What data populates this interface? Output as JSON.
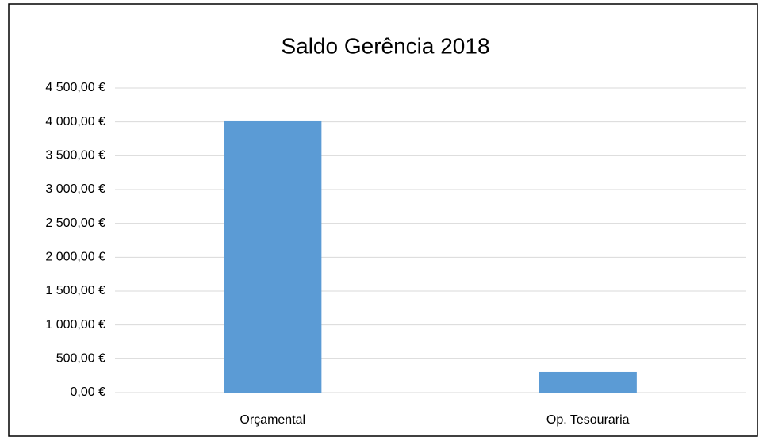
{
  "chart_data": {
    "type": "bar",
    "title": "Saldo Gerência 2018",
    "categories": [
      "Orçamental",
      "Op. Tesouraria"
    ],
    "values": [
      4020,
      305
    ],
    "color": "#5b9bd5",
    "ylim": [
      0,
      4500
    ],
    "yticks": [
      {
        "value": 0,
        "label": "0,00 €"
      },
      {
        "value": 500,
        "label": "500,00 €"
      },
      {
        "value": 1000,
        "label": "1 000,00 €"
      },
      {
        "value": 1500,
        "label": "1 500,00 €"
      },
      {
        "value": 2000,
        "label": "2 000,00 €"
      },
      {
        "value": 2500,
        "label": "2 500,00 €"
      },
      {
        "value": 3000,
        "label": "3 000,00 €"
      },
      {
        "value": 3500,
        "label": "3 500,00 €"
      },
      {
        "value": 4000,
        "label": "4 000,00 €"
      },
      {
        "value": 4500,
        "label": "4 500,00 €"
      }
    ],
    "grid": true
  }
}
